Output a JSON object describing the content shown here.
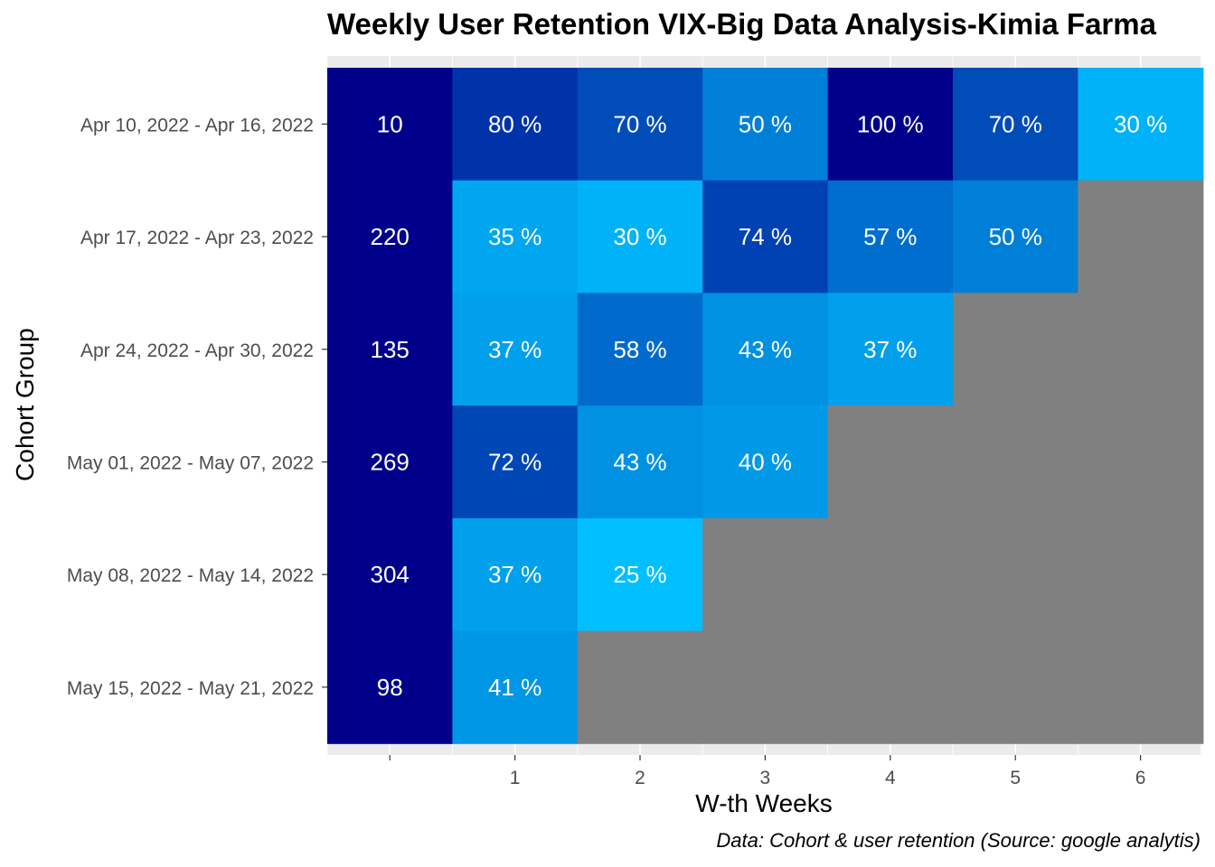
{
  "chart_data": {
    "type": "heatmap",
    "title": "Weekly User Retention VIX-Big Data Analysis-Kimia Farma",
    "xlabel": "W-th Weeks",
    "ylabel": "Cohort Group",
    "caption": "Data: Cohort & user retention (Source: google analytis)",
    "x_ticks": [
      "",
      "1",
      "2",
      "3",
      "4",
      "5",
      "6"
    ],
    "rows": [
      {
        "cohort": "Apr 10, 2022 - Apr 16, 2022",
        "size": 10,
        "retention": [
          80,
          70,
          50,
          100,
          70,
          30
        ]
      },
      {
        "cohort": "Apr 17, 2022 - Apr 23, 2022",
        "size": 220,
        "retention": [
          35,
          30,
          74,
          57,
          50
        ]
      },
      {
        "cohort": "Apr 24, 2022 - Apr 30, 2022",
        "size": 135,
        "retention": [
          37,
          58,
          43,
          37
        ]
      },
      {
        "cohort": "May 01, 2022 - May 07, 2022",
        "size": 269,
        "retention": [
          72,
          43,
          40
        ]
      },
      {
        "cohort": "May 08, 2022 - May 14, 2022",
        "size": 304,
        "retention": [
          37,
          25
        ]
      },
      {
        "cohort": "May 15, 2022 - May 21, 2022",
        "size": 98,
        "retention": [
          41
        ]
      }
    ],
    "missing_color": "#808080",
    "cohort_size_color": "#00008b",
    "color_low": "#00bfff",
    "color_high": "#00008b",
    "grid": true
  }
}
